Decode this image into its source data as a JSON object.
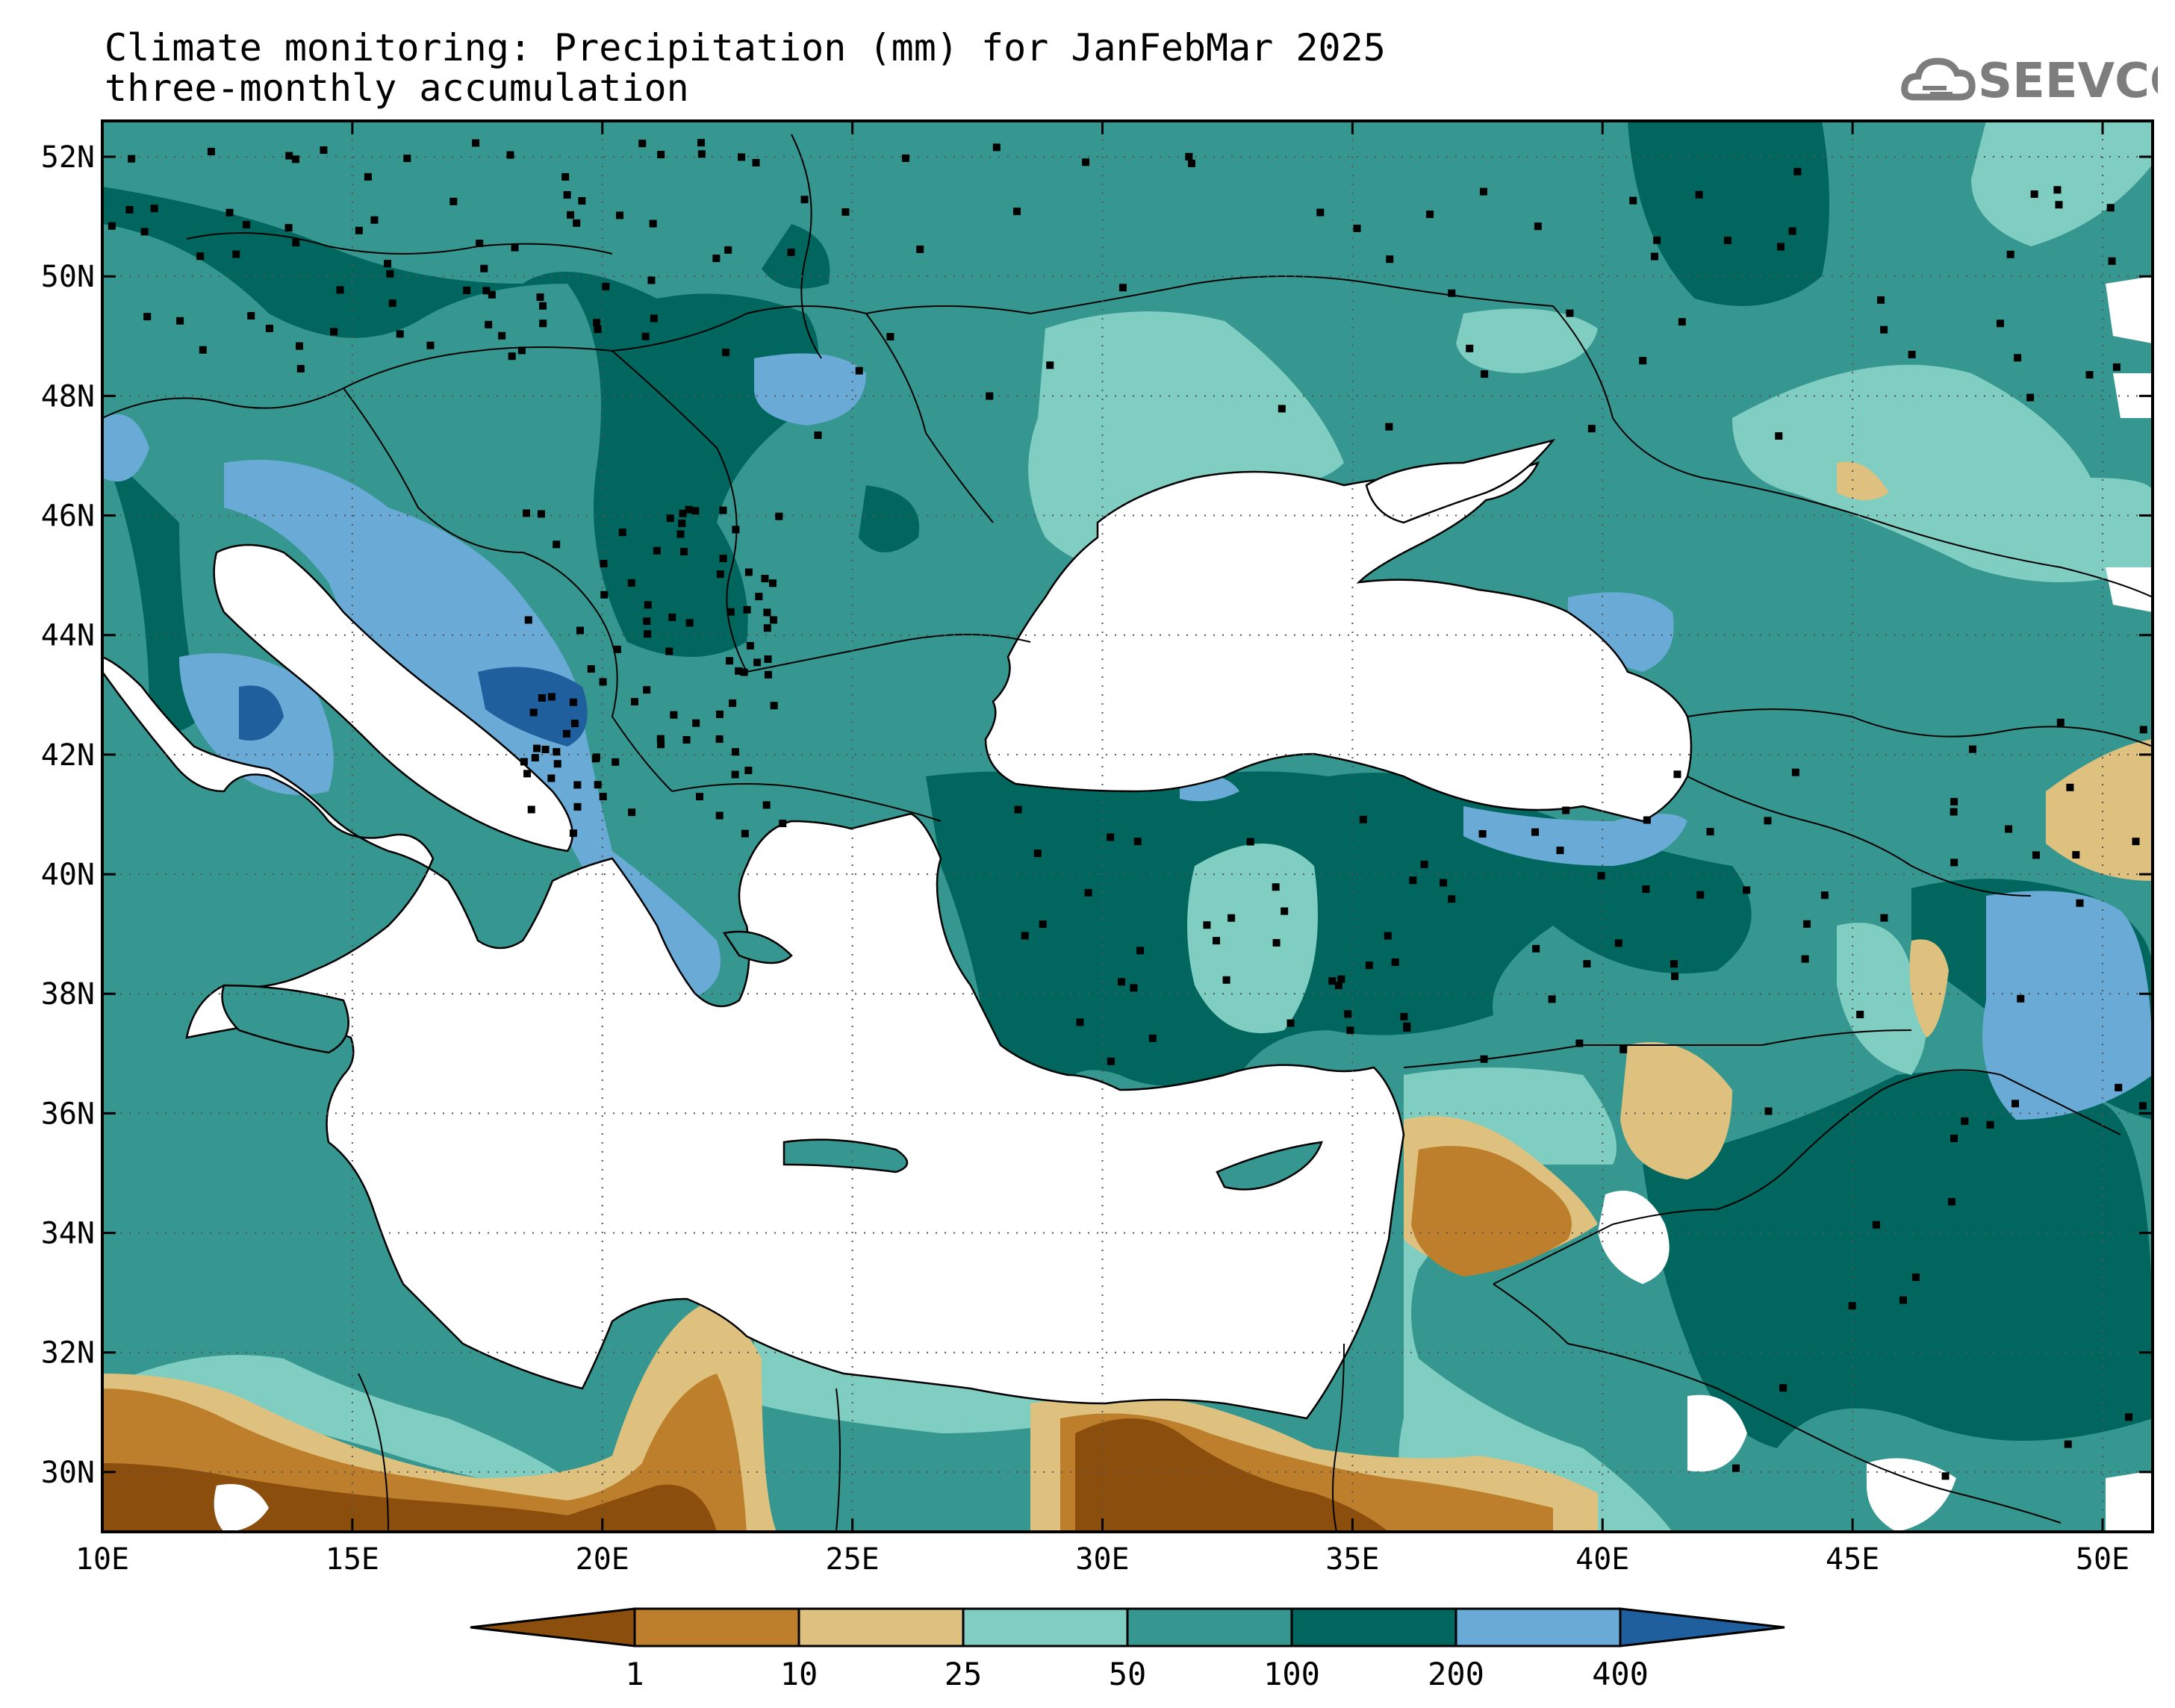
{
  "title": {
    "line1": "Climate monitoring: Precipitation (mm) for JanFebMar 2025",
    "line2": "three-monthly accumulation"
  },
  "logo": {
    "text": "SEEVCCC",
    "icon": "cloud-icon",
    "color": "#7d7d7d"
  },
  "map": {
    "projection": "lat-lon",
    "lon_range": [
      10,
      51
    ],
    "lat_range": [
      29,
      52.6
    ],
    "lat_ticks": [
      {
        "value": 52,
        "label": "52N"
      },
      {
        "value": 50,
        "label": "50N"
      },
      {
        "value": 48,
        "label": "48N"
      },
      {
        "value": 46,
        "label": "46N"
      },
      {
        "value": 44,
        "label": "44N"
      },
      {
        "value": 42,
        "label": "42N"
      },
      {
        "value": 40,
        "label": "40N"
      },
      {
        "value": 38,
        "label": "38N"
      },
      {
        "value": 36,
        "label": "36N"
      },
      {
        "value": 34,
        "label": "34N"
      },
      {
        "value": 32,
        "label": "32N"
      },
      {
        "value": 30,
        "label": "30N"
      }
    ],
    "lon_ticks": [
      {
        "value": 10,
        "label": "10E"
      },
      {
        "value": 15,
        "label": "15E"
      },
      {
        "value": 20,
        "label": "20E"
      },
      {
        "value": 25,
        "label": "25E"
      },
      {
        "value": 30,
        "label": "30E"
      },
      {
        "value": 35,
        "label": "35E"
      },
      {
        "value": 40,
        "label": "40E"
      },
      {
        "value": 45,
        "label": "45E"
      },
      {
        "value": 50,
        "label": "50E"
      }
    ],
    "grid": "dotted",
    "sea_color": "#ffffff",
    "stations_marker": "square"
  },
  "colorbar": {
    "units": "mm",
    "bins": [
      {
        "color": "#8b4e0c"
      },
      {
        "color": "#bd7f2c"
      },
      {
        "color": "#dfc17f"
      },
      {
        "color": "#80cdc1"
      },
      {
        "color": "#35978f"
      },
      {
        "color": "#01665e"
      },
      {
        "color": "#6aaad6"
      },
      {
        "color": "#1f5f9e"
      }
    ],
    "labels": [
      "1",
      "10",
      "25",
      "50",
      "100",
      "200",
      "400"
    ]
  }
}
